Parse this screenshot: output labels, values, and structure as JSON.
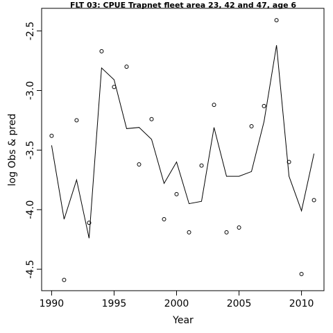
{
  "chart_data": {
    "type": "line",
    "title": "FLT 03: CPUE Trapnet fleet area 23, 42 and 47, age 6",
    "xlabel": "Year",
    "ylabel": "log Obs & pred",
    "xlim": [
      1989.2,
      2011.8
    ],
    "ylim": [
      -4.68,
      -2.31
    ],
    "x_ticks": [
      1990,
      1995,
      2000,
      2005,
      2010
    ],
    "y_ticks": [
      -4.5,
      -4.0,
      -3.5,
      -3.0,
      -2.5
    ],
    "x_tick_labels": [
      "1990",
      "1995",
      "2000",
      "2005",
      "2010"
    ],
    "y_tick_labels": [
      "-4.5",
      "-4.0",
      "-3.5",
      "-3.0",
      "-2.5"
    ],
    "grid": false,
    "series": [
      {
        "kind": "points",
        "marker": "open-circle",
        "x": [
          1990,
          1991,
          1992,
          1993,
          1994,
          1995,
          1996,
          1997,
          1998,
          1999,
          2000,
          2001,
          2002,
          2003,
          2004,
          2005,
          2006,
          2007,
          2008,
          2009,
          2010,
          2011
        ],
        "y": [
          -3.38,
          -4.59,
          -3.25,
          -4.11,
          -2.67,
          -2.97,
          -2.8,
          -3.62,
          -3.24,
          -4.08,
          -3.87,
          -4.19,
          -3.63,
          -3.12,
          -4.19,
          -4.15,
          -3.3,
          -3.13,
          -2.41,
          -3.6,
          -4.54,
          -3.92
        ]
      },
      {
        "kind": "line",
        "x": [
          1990,
          1991,
          1992,
          1993,
          1994,
          1995,
          1996,
          1997,
          1998,
          1999,
          2000,
          2001,
          2002,
          2003,
          2004,
          2005,
          2006,
          2007,
          2008,
          2009,
          2010,
          2011
        ],
        "y": [
          -3.46,
          -4.08,
          -3.75,
          -4.24,
          -2.81,
          -2.91,
          -3.32,
          -3.31,
          -3.41,
          -3.78,
          -3.6,
          -3.95,
          -3.93,
          -3.31,
          -3.72,
          -3.72,
          -3.68,
          -3.26,
          -2.62,
          -3.72,
          -4.01,
          -3.53
        ]
      }
    ]
  }
}
